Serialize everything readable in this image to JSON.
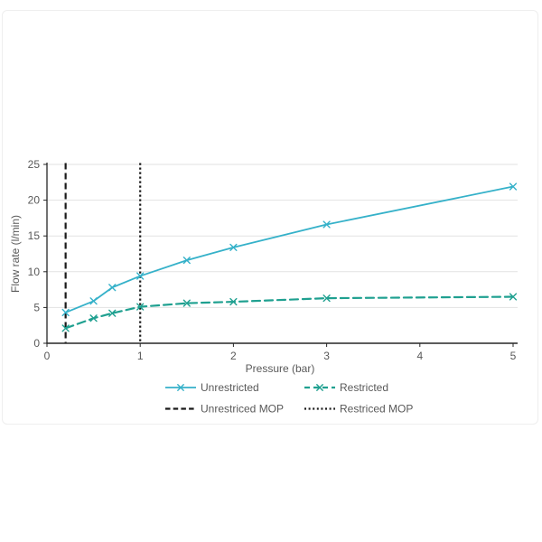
{
  "page": {
    "background": "#ffffff",
    "card_border": "#eeeeee"
  },
  "colors": {
    "unrestricted_line": "#35b1c9",
    "restricted_line": "#1fa090",
    "mop_line": "#1a1a1a",
    "gridline": "#e2e2e2",
    "axis_line": "#262626",
    "label_text": "#595959"
  },
  "chart_data": {
    "type": "line",
    "title": "",
    "xlabel": "Pressure (bar)",
    "ylabel": "Flow rate (l/min)",
    "xlim": [
      0,
      5
    ],
    "ylim": [
      0,
      25
    ],
    "x_ticks": [
      0,
      1,
      2,
      3,
      4,
      5
    ],
    "y_ticks": [
      0,
      5,
      10,
      15,
      20,
      25
    ],
    "grid": "horizontal",
    "legend_position": "bottom",
    "series": [
      {
        "name": "Unrestricted",
        "color": "#35b1c9",
        "style": "solid",
        "marker": "x",
        "x": [
          0.2,
          0.5,
          0.7,
          1,
          1.5,
          2,
          3,
          5
        ],
        "y": [
          4.3,
          5.9,
          7.8,
          9.4,
          11.6,
          13.4,
          16.6,
          21.9
        ]
      },
      {
        "name": "Restricted",
        "color": "#1fa090",
        "style": "dashed",
        "marker": "x",
        "x": [
          0.2,
          0.5,
          0.7,
          1,
          1.5,
          2,
          3,
          5
        ],
        "y": [
          2.1,
          3.5,
          4.2,
          5.1,
          5.6,
          5.8,
          6.3,
          6.5
        ]
      }
    ],
    "vlines": [
      {
        "name": "Unrestriced MOP",
        "x": 0.2,
        "color": "#1a1a1a",
        "style": "dashed"
      },
      {
        "name": "Restriced MOP",
        "x": 1.0,
        "color": "#1a1a1a",
        "style": "dotted"
      }
    ]
  }
}
